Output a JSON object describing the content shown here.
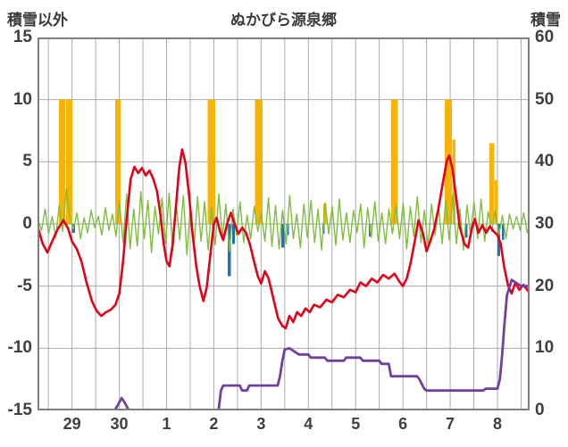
{
  "chart_data": {
    "type": "line",
    "title": "ぬかびら源泉郷",
    "left_axis": {
      "label": "積雪以外",
      "min": -15,
      "max": 15,
      "ticks": [
        15,
        10,
        5,
        0,
        -5,
        -10,
        -15
      ]
    },
    "right_axis": {
      "label": "積雪",
      "min": 0,
      "max": 60,
      "ticks": [
        60,
        50,
        40,
        30,
        20,
        10,
        0
      ]
    },
    "x_axis": {
      "labels": [
        "29",
        "30",
        "1",
        "2",
        "3",
        "4",
        "5",
        "6",
        "7",
        "8"
      ],
      "label_positions": [
        0,
        1,
        2,
        3,
        4,
        5,
        6,
        7,
        8,
        9
      ],
      "range": [
        -0.73,
        9.68
      ],
      "gridline_step": 0.5,
      "grid": true
    },
    "colors": {
      "red_line": "#e60017",
      "green_line": "#7fbf3f",
      "orange_bars": "#f9b208",
      "blue_bars": "#2272b5",
      "purple_line": "#7040a0",
      "grid": "#aaaaaa",
      "border": "#7f7f7f",
      "text": "#3a3a3a"
    },
    "series": [
      {
        "id": "orange_bars",
        "type": "bar",
        "axis": "left",
        "bars": [
          {
            "t": -0.21,
            "h": 10,
            "w": 0.14
          },
          {
            "t": -0.06,
            "h": 10,
            "w": 0.14
          },
          {
            "t": 0.97,
            "h": 10,
            "w": 0.12
          },
          {
            "t": 2.95,
            "h": 10,
            "w": 0.16
          },
          {
            "t": 3.95,
            "h": 10,
            "w": 0.16
          },
          {
            "t": 5.35,
            "h": 1.6,
            "w": 0.06
          },
          {
            "t": 6.82,
            "h": 10,
            "w": 0.14
          },
          {
            "t": 7.96,
            "h": 10,
            "w": 0.15
          },
          {
            "t": 8.08,
            "h": 6.8,
            "w": 0.07
          },
          {
            "t": 8.88,
            "h": 6.5,
            "w": 0.1
          },
          {
            "t": 8.97,
            "h": 3.5,
            "w": 0.06
          }
        ]
      },
      {
        "id": "blue_bars",
        "type": "bar",
        "axis": "left",
        "bars": [
          {
            "t": 0.03,
            "h": -0.7,
            "w": 0.06
          },
          {
            "t": 2.99,
            "h": -1.1,
            "w": 0.06
          },
          {
            "t": 3.33,
            "h": -4.2,
            "w": 0.07
          },
          {
            "t": 3.42,
            "h": -1.6,
            "w": 0.06
          },
          {
            "t": 4.46,
            "h": -1.9,
            "w": 0.06
          },
          {
            "t": 4.56,
            "h": -0.9,
            "w": 0.06
          },
          {
            "t": 5.32,
            "h": -0.8,
            "w": 0.05
          },
          {
            "t": 6.3,
            "h": -1.0,
            "w": 0.05
          },
          {
            "t": 8.34,
            "h": -1.1,
            "w": 0.05
          },
          {
            "t": 9.03,
            "h": -2.6,
            "w": 0.06
          },
          {
            "t": 9.12,
            "h": -1.3,
            "w": 0.05
          }
        ]
      },
      {
        "id": "green_line",
        "type": "sampled_line",
        "axis": "left",
        "width": 1.4,
        "t0": -0.72,
        "dt": 0.075,
        "values": [
          0.3,
          -0.5,
          1.2,
          -0.8,
          0.6,
          -1.1,
          1.5,
          -0.6,
          2.9,
          0.4,
          -0.4,
          0.9,
          -1.2,
          0.5,
          -0.7,
          1.1,
          -0.3,
          0.6,
          -0.9,
          1.3,
          -0.5,
          0.8,
          -1.0,
          1.8,
          -1.5,
          2.4,
          -2.0,
          1.2,
          -1.8,
          2.6,
          -1.2,
          1.9,
          -2.3,
          1.4,
          -0.8,
          2.1,
          -1.6,
          2.5,
          -2.2,
          1.7,
          -1.3,
          2.3,
          -2.5,
          1.5,
          -1.9,
          2.2,
          -1.4,
          1.8,
          -2.1,
          1.3,
          -1.7,
          2.4,
          -1.1,
          1.6,
          -2.2,
          1.2,
          -0.9,
          1.8,
          -1.5,
          0.7,
          -1.2,
          1.4,
          -0.6,
          0.9,
          -1.4,
          2.1,
          -1.8,
          1.5,
          -2.0,
          1.1,
          -1.6,
          2.3,
          -1.2,
          0.8,
          -1.9,
          1.6,
          -1.1,
          1.9,
          -1.5,
          1.2,
          -2.1,
          1.7,
          -0.8,
          1.4,
          -1.7,
          2.0,
          -1.3,
          0.9,
          -1.5,
          1.1,
          -0.7,
          1.6,
          -1.9,
          1.3,
          -1.1,
          1.8,
          -1.4,
          0.9,
          -1.6,
          1.2,
          -0.8,
          1.5,
          -1.2,
          1.7,
          -2.0,
          1.4,
          -1.0,
          2.2,
          -1.5,
          1.1,
          -1.8,
          1.6,
          -0.9,
          1.3,
          -1.6,
          1.9,
          -1.3,
          2.4,
          -1.6,
          1.2,
          -2.1,
          1.5,
          -0.8,
          1.8,
          -1.2,
          2.0,
          -1.4,
          1.0,
          -0.6,
          1.1,
          -0.9,
          0.7,
          -1.2,
          0.8,
          -0.4,
          0.6,
          -0.5,
          0.9,
          -0.7,
          0.4
        ]
      },
      {
        "id": "red_line",
        "type": "line",
        "axis": "left",
        "width": 2.6,
        "points": [
          [
            -0.72,
            -0.3
          ],
          [
            -0.62,
            -1.6
          ],
          [
            -0.52,
            -2.3
          ],
          [
            -0.42,
            -1.4
          ],
          [
            -0.3,
            -0.4
          ],
          [
            -0.18,
            0.3
          ],
          [
            -0.08,
            -0.4
          ],
          [
            0.0,
            -1.4
          ],
          [
            0.1,
            -2.0
          ],
          [
            0.2,
            -3.0
          ],
          [
            0.3,
            -4.6
          ],
          [
            0.42,
            -6.2
          ],
          [
            0.52,
            -7.0
          ],
          [
            0.62,
            -7.4
          ],
          [
            0.72,
            -7.1
          ],
          [
            0.82,
            -6.9
          ],
          [
            0.92,
            -6.5
          ],
          [
            1.0,
            -5.6
          ],
          [
            1.08,
            -3.0
          ],
          [
            1.16,
            0.5
          ],
          [
            1.24,
            3.6
          ],
          [
            1.32,
            4.6
          ],
          [
            1.4,
            4.1
          ],
          [
            1.48,
            4.5
          ],
          [
            1.56,
            3.9
          ],
          [
            1.64,
            4.3
          ],
          [
            1.72,
            3.6
          ],
          [
            1.8,
            2.6
          ],
          [
            1.87,
            0.8
          ],
          [
            1.94,
            -1.6
          ],
          [
            2.0,
            -3.0
          ],
          [
            2.06,
            -3.4
          ],
          [
            2.13,
            -1.6
          ],
          [
            2.2,
            1.5
          ],
          [
            2.27,
            4.6
          ],
          [
            2.33,
            6.0
          ],
          [
            2.4,
            4.9
          ],
          [
            2.48,
            2.2
          ],
          [
            2.55,
            -0.8
          ],
          [
            2.63,
            -3.4
          ],
          [
            2.7,
            -5.0
          ],
          [
            2.78,
            -6.2
          ],
          [
            2.85,
            -5.1
          ],
          [
            2.93,
            -2.4
          ],
          [
            3.0,
            0.0
          ],
          [
            3.06,
            0.5
          ],
          [
            3.13,
            -0.6
          ],
          [
            3.2,
            -1.3
          ],
          [
            3.28,
            0.0
          ],
          [
            3.36,
            0.9
          ],
          [
            3.44,
            0.0
          ],
          [
            3.52,
            -0.8
          ],
          [
            3.6,
            -0.3
          ],
          [
            3.68,
            -0.7
          ],
          [
            3.76,
            -1.6
          ],
          [
            3.85,
            -3.0
          ],
          [
            3.93,
            -4.2
          ],
          [
            4.0,
            -4.8
          ],
          [
            4.08,
            -3.8
          ],
          [
            4.16,
            -4.4
          ],
          [
            4.26,
            -6.0
          ],
          [
            4.36,
            -7.6
          ],
          [
            4.45,
            -8.2
          ],
          [
            4.52,
            -8.4
          ],
          [
            4.6,
            -7.4
          ],
          [
            4.68,
            -7.9
          ],
          [
            4.76,
            -7.1
          ],
          [
            4.85,
            -7.4
          ],
          [
            4.94,
            -6.8
          ],
          [
            5.03,
            -7.1
          ],
          [
            5.12,
            -6.5
          ],
          [
            5.25,
            -6.7
          ],
          [
            5.38,
            -6.1
          ],
          [
            5.5,
            -6.3
          ],
          [
            5.62,
            -5.7
          ],
          [
            5.75,
            -5.9
          ],
          [
            5.88,
            -5.3
          ],
          [
            6.0,
            -5.5
          ],
          [
            6.1,
            -4.7
          ],
          [
            6.22,
            -5.0
          ],
          [
            6.34,
            -4.4
          ],
          [
            6.46,
            -4.7
          ],
          [
            6.58,
            -4.1
          ],
          [
            6.7,
            -4.4
          ],
          [
            6.82,
            -4.0
          ],
          [
            6.92,
            -4.6
          ],
          [
            7.0,
            -5.0
          ],
          [
            7.08,
            -4.4
          ],
          [
            7.16,
            -3.2
          ],
          [
            7.25,
            -1.4
          ],
          [
            7.33,
            0.3
          ],
          [
            7.42,
            -0.7
          ],
          [
            7.5,
            -2.2
          ],
          [
            7.58,
            -1.4
          ],
          [
            7.66,
            -0.4
          ],
          [
            7.75,
            1.2
          ],
          [
            7.85,
            3.4
          ],
          [
            7.93,
            5.1
          ],
          [
            7.98,
            5.5
          ],
          [
            8.05,
            4.4
          ],
          [
            8.13,
            2.0
          ],
          [
            8.2,
            -0.2
          ],
          [
            8.3,
            -1.6
          ],
          [
            8.38,
            -1.9
          ],
          [
            8.45,
            -0.5
          ],
          [
            8.52,
            0.4
          ],
          [
            8.6,
            -0.7
          ],
          [
            8.68,
            -0.1
          ],
          [
            8.76,
            -0.7
          ],
          [
            8.84,
            -0.2
          ],
          [
            8.92,
            -0.6
          ],
          [
            9.0,
            -0.9
          ],
          [
            9.07,
            -1.6
          ],
          [
            9.14,
            -3.4
          ],
          [
            9.22,
            -4.9
          ],
          [
            9.3,
            -5.6
          ],
          [
            9.38,
            -4.7
          ],
          [
            9.46,
            -5.3
          ],
          [
            9.55,
            -4.9
          ],
          [
            9.65,
            -5.4
          ]
        ]
      },
      {
        "id": "purple_line",
        "type": "line",
        "axis": "right",
        "width": 2.8,
        "points": [
          [
            -0.72,
            0
          ],
          [
            0.9,
            0
          ],
          [
            0.98,
            1.0
          ],
          [
            1.05,
            2.0
          ],
          [
            1.12,
            1.2
          ],
          [
            1.18,
            0.3
          ],
          [
            1.22,
            0
          ],
          [
            3.1,
            0
          ],
          [
            3.15,
            3.2
          ],
          [
            3.2,
            4.0
          ],
          [
            3.55,
            4.0
          ],
          [
            3.6,
            3.2
          ],
          [
            3.7,
            3.2
          ],
          [
            3.75,
            4.0
          ],
          [
            4.35,
            4.0
          ],
          [
            4.4,
            5.5
          ],
          [
            4.45,
            8.0
          ],
          [
            4.5,
            9.8
          ],
          [
            4.6,
            10.0
          ],
          [
            4.7,
            9.5
          ],
          [
            4.8,
            9.0
          ],
          [
            5.0,
            9.0
          ],
          [
            5.05,
            8.5
          ],
          [
            5.35,
            8.5
          ],
          [
            5.4,
            8.0
          ],
          [
            5.75,
            8.0
          ],
          [
            5.8,
            8.5
          ],
          [
            6.1,
            8.5
          ],
          [
            6.15,
            8.0
          ],
          [
            6.5,
            8.0
          ],
          [
            6.55,
            7.5
          ],
          [
            6.7,
            7.5
          ],
          [
            6.75,
            5.5
          ],
          [
            7.3,
            5.5
          ],
          [
            7.35,
            5.0
          ],
          [
            7.45,
            3.5
          ],
          [
            7.5,
            3.2
          ],
          [
            8.7,
            3.2
          ],
          [
            8.75,
            3.5
          ],
          [
            9.0,
            3.5
          ],
          [
            9.05,
            5.0
          ],
          [
            9.1,
            9.0
          ],
          [
            9.15,
            14.0
          ],
          [
            9.2,
            18.5
          ],
          [
            9.3,
            21.0
          ],
          [
            9.4,
            20.5
          ],
          [
            9.5,
            20.0
          ],
          [
            9.65,
            20.0
          ]
        ]
      }
    ]
  }
}
